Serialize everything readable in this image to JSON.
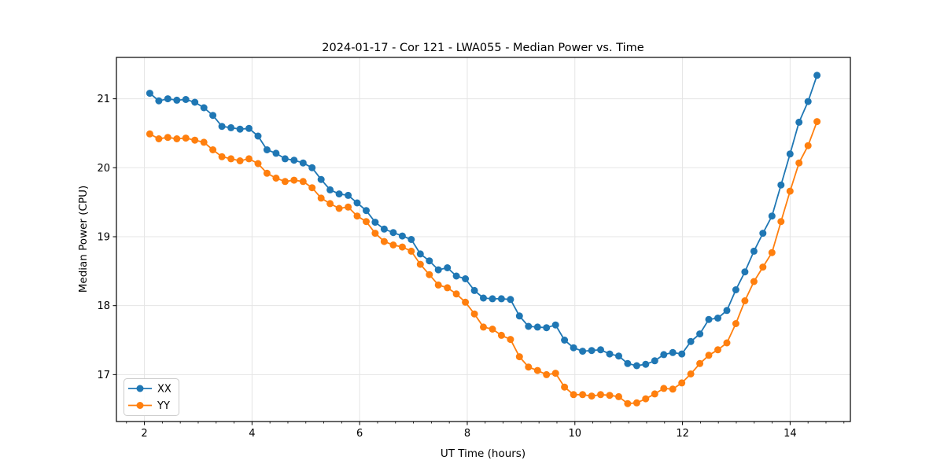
{
  "chart_data": {
    "type": "line",
    "title": "2024-01-17 - Cor 121 - LWA055 - Median Power vs. Time",
    "xlabel": "UT Time (hours)",
    "ylabel": "Median Power (CPU)",
    "xlim": [
      1.48,
      15.12
    ],
    "ylim": [
      16.32,
      21.6
    ],
    "xticks": [
      2,
      4,
      6,
      8,
      10,
      12,
      14
    ],
    "yticks": [
      17,
      18,
      19,
      20,
      21
    ],
    "x_minor_step": 0.33333,
    "grid": true,
    "legend_position": "lower left",
    "x": [
      2.1,
      2.268,
      2.435,
      2.603,
      2.77,
      2.938,
      3.105,
      3.273,
      3.441,
      3.608,
      3.776,
      3.943,
      4.111,
      4.278,
      4.446,
      4.614,
      4.781,
      4.949,
      5.116,
      5.284,
      5.451,
      5.619,
      5.787,
      5.954,
      6.122,
      6.289,
      6.457,
      6.624,
      6.792,
      6.96,
      7.127,
      7.295,
      7.462,
      7.63,
      7.797,
      7.965,
      8.133,
      8.3,
      8.468,
      8.635,
      8.803,
      8.97,
      9.138,
      9.306,
      9.473,
      9.641,
      9.808,
      9.976,
      10.143,
      10.311,
      10.479,
      10.646,
      10.814,
      10.981,
      11.149,
      11.316,
      11.484,
      11.652,
      11.819,
      11.987,
      12.154,
      12.322,
      12.489,
      12.657,
      12.825,
      12.992,
      13.16,
      13.327,
      13.495,
      13.662,
      13.83,
      13.998,
      14.165,
      14.333,
      14.5
    ],
    "series": [
      {
        "name": "XX",
        "color": "#1f77b4",
        "marker": "circle",
        "values": [
          21.08,
          20.97,
          21.0,
          20.98,
          20.99,
          20.95,
          20.87,
          20.76,
          20.6,
          20.58,
          20.56,
          20.57,
          20.46,
          20.26,
          20.21,
          20.13,
          20.11,
          20.07,
          20.0,
          19.83,
          19.68,
          19.62,
          19.6,
          19.49,
          19.38,
          19.21,
          19.11,
          19.06,
          19.01,
          18.96,
          18.75,
          18.65,
          18.52,
          18.55,
          18.43,
          18.39,
          18.22,
          18.11,
          18.1,
          18.1,
          18.09,
          17.85,
          17.7,
          17.69,
          17.68,
          17.72,
          17.5,
          17.39,
          17.34,
          17.35,
          17.36,
          17.3,
          17.27,
          17.16,
          17.13,
          17.15,
          17.2,
          17.29,
          17.32,
          17.3,
          17.48,
          17.59,
          17.8,
          17.82,
          17.93,
          18.23,
          18.49,
          18.79,
          19.05,
          19.3,
          19.75,
          20.2,
          20.66,
          20.96,
          21.34
        ]
      },
      {
        "name": "YY",
        "color": "#ff7f0e",
        "marker": "circle",
        "values": [
          20.49,
          20.42,
          20.44,
          20.42,
          20.43,
          20.4,
          20.37,
          20.26,
          20.16,
          20.13,
          20.1,
          20.13,
          20.06,
          19.92,
          19.85,
          19.8,
          19.82,
          19.8,
          19.71,
          19.56,
          19.48,
          19.41,
          19.43,
          19.3,
          19.22,
          19.05,
          18.93,
          18.88,
          18.85,
          18.79,
          18.6,
          18.45,
          18.3,
          18.26,
          18.17,
          18.05,
          17.88,
          17.69,
          17.66,
          17.57,
          17.51,
          17.26,
          17.11,
          17.06,
          17.0,
          17.02,
          16.82,
          16.71,
          16.71,
          16.69,
          16.71,
          16.7,
          16.68,
          16.58,
          16.59,
          16.65,
          16.72,
          16.8,
          16.79,
          16.88,
          17.01,
          17.16,
          17.28,
          17.36,
          17.46,
          17.74,
          18.07,
          18.35,
          18.56,
          18.77,
          19.22,
          19.66,
          20.07,
          20.32,
          20.67
        ]
      }
    ],
    "colors": {
      "series_xx": "#1f77b4",
      "series_yy": "#ff7f0e",
      "grid": "#e5e5e5",
      "spine": "#000000",
      "background": "#ffffff",
      "legend_border": "#cccccc"
    }
  }
}
